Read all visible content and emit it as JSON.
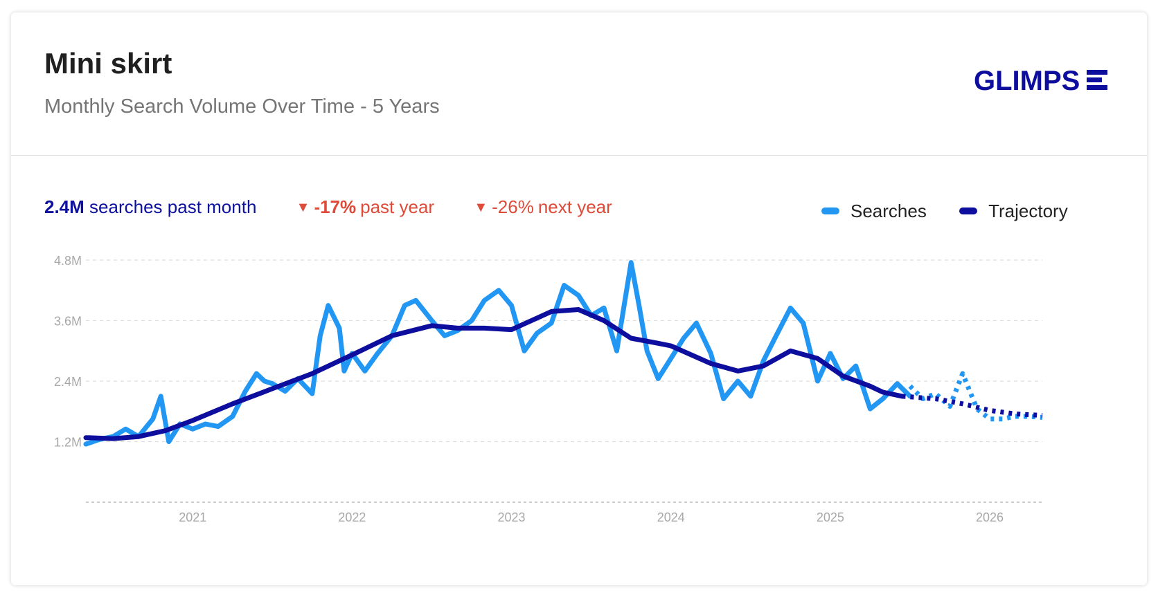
{
  "header": {
    "title": "Mini skirt",
    "subtitle": "Monthly Search Volume Over Time - 5 Years",
    "logo_text": "GLIMPSE"
  },
  "stats": {
    "past_month": {
      "value": "2.4M",
      "label": "searches past month"
    },
    "past_year": {
      "icon": "down-triangle-icon",
      "value": "-17%",
      "label": "past year"
    },
    "next_year": {
      "icon": "down-triangle-icon",
      "value": "-26%",
      "label": "next year"
    }
  },
  "legend": [
    {
      "label": "Searches",
      "color": "#2196f3"
    },
    {
      "label": "Trajectory",
      "color": "#0d0d9e"
    }
  ],
  "colors": {
    "searches": "#2196f3",
    "trajectory": "#0d0d9e",
    "decline": "#dd4b39"
  },
  "chart_data": {
    "type": "line",
    "xlabel": "",
    "ylabel": "",
    "x_ticks": [
      "2021",
      "2022",
      "2023",
      "2024",
      "2025",
      "2026"
    ],
    "y_ticks": [
      {
        "value": 1.2,
        "label": "1.2M"
      },
      {
        "value": 2.4,
        "label": "2.4M"
      },
      {
        "value": 3.6,
        "label": "3.6M"
      },
      {
        "value": 4.8,
        "label": "4.8M"
      }
    ],
    "x_range": [
      2020.33,
      2026.33
    ],
    "y_range": [
      0,
      4.8
    ],
    "grid": true,
    "legend_position": "top-right",
    "series": [
      {
        "name": "Searches",
        "style": "solid",
        "points": [
          [
            2020.33,
            1.15
          ],
          [
            2020.42,
            1.25
          ],
          [
            2020.5,
            1.3
          ],
          [
            2020.58,
            1.45
          ],
          [
            2020.66,
            1.3
          ],
          [
            2020.75,
            1.65
          ],
          [
            2020.8,
            2.1
          ],
          [
            2020.85,
            1.2
          ],
          [
            2020.92,
            1.55
          ],
          [
            2021.0,
            1.45
          ],
          [
            2021.08,
            1.55
          ],
          [
            2021.16,
            1.5
          ],
          [
            2021.25,
            1.7
          ],
          [
            2021.33,
            2.2
          ],
          [
            2021.4,
            2.55
          ],
          [
            2021.45,
            2.4
          ],
          [
            2021.5,
            2.35
          ],
          [
            2021.58,
            2.2
          ],
          [
            2021.66,
            2.45
          ],
          [
            2021.75,
            2.15
          ],
          [
            2021.8,
            3.3
          ],
          [
            2021.85,
            3.9
          ],
          [
            2021.92,
            3.45
          ],
          [
            2021.95,
            2.6
          ],
          [
            2022.0,
            2.95
          ],
          [
            2022.08,
            2.6
          ],
          [
            2022.16,
            2.95
          ],
          [
            2022.25,
            3.3
          ],
          [
            2022.33,
            3.9
          ],
          [
            2022.4,
            4.0
          ],
          [
            2022.5,
            3.6
          ],
          [
            2022.58,
            3.3
          ],
          [
            2022.66,
            3.4
          ],
          [
            2022.75,
            3.6
          ],
          [
            2022.83,
            4.0
          ],
          [
            2022.92,
            4.2
          ],
          [
            2023.0,
            3.9
          ],
          [
            2023.08,
            3.0
          ],
          [
            2023.16,
            3.35
          ],
          [
            2023.25,
            3.55
          ],
          [
            2023.33,
            4.3
          ],
          [
            2023.42,
            4.1
          ],
          [
            2023.5,
            3.7
          ],
          [
            2023.58,
            3.85
          ],
          [
            2023.66,
            3.0
          ],
          [
            2023.75,
            4.75
          ],
          [
            2023.8,
            3.9
          ],
          [
            2023.85,
            3.0
          ],
          [
            2023.92,
            2.45
          ],
          [
            2024.0,
            2.85
          ],
          [
            2024.08,
            3.25
          ],
          [
            2024.16,
            3.55
          ],
          [
            2024.25,
            2.95
          ],
          [
            2024.33,
            2.05
          ],
          [
            2024.42,
            2.4
          ],
          [
            2024.5,
            2.1
          ],
          [
            2024.58,
            2.8
          ],
          [
            2024.66,
            3.3
          ],
          [
            2024.75,
            3.85
          ],
          [
            2024.83,
            3.55
          ],
          [
            2024.92,
            2.4
          ],
          [
            2025.0,
            2.95
          ],
          [
            2025.08,
            2.45
          ],
          [
            2025.16,
            2.7
          ],
          [
            2025.25,
            1.85
          ],
          [
            2025.33,
            2.05
          ],
          [
            2025.42,
            2.35
          ],
          [
            2025.5,
            2.1
          ]
        ]
      },
      {
        "name": "Searches forecast",
        "style": "dotted",
        "points": [
          [
            2025.5,
            2.3
          ],
          [
            2025.58,
            2.05
          ],
          [
            2025.66,
            2.15
          ],
          [
            2025.75,
            1.9
          ],
          [
            2025.83,
            2.55
          ],
          [
            2025.92,
            1.85
          ],
          [
            2026.0,
            1.65
          ],
          [
            2026.08,
            1.65
          ],
          [
            2026.16,
            1.7
          ],
          [
            2026.25,
            1.7
          ],
          [
            2026.33,
            1.68
          ]
        ]
      },
      {
        "name": "Trajectory",
        "style": "solid",
        "points": [
          [
            2020.33,
            1.28
          ],
          [
            2020.5,
            1.26
          ],
          [
            2020.66,
            1.3
          ],
          [
            2020.83,
            1.42
          ],
          [
            2021.0,
            1.62
          ],
          [
            2021.25,
            1.95
          ],
          [
            2021.5,
            2.25
          ],
          [
            2021.75,
            2.55
          ],
          [
            2022.0,
            2.92
          ],
          [
            2022.25,
            3.3
          ],
          [
            2022.5,
            3.5
          ],
          [
            2022.66,
            3.45
          ],
          [
            2022.83,
            3.45
          ],
          [
            2023.0,
            3.42
          ],
          [
            2023.25,
            3.78
          ],
          [
            2023.42,
            3.82
          ],
          [
            2023.58,
            3.6
          ],
          [
            2023.75,
            3.25
          ],
          [
            2023.92,
            3.15
          ],
          [
            2024.0,
            3.1
          ],
          [
            2024.25,
            2.75
          ],
          [
            2024.42,
            2.6
          ],
          [
            2024.58,
            2.7
          ],
          [
            2024.75,
            3.0
          ],
          [
            2024.92,
            2.85
          ],
          [
            2025.08,
            2.5
          ],
          [
            2025.25,
            2.3
          ],
          [
            2025.33,
            2.18
          ],
          [
            2025.45,
            2.1
          ]
        ]
      },
      {
        "name": "Trajectory forecast",
        "style": "dotted",
        "points": [
          [
            2025.45,
            2.1
          ],
          [
            2025.66,
            2.05
          ],
          [
            2025.83,
            1.95
          ],
          [
            2026.0,
            1.82
          ],
          [
            2026.16,
            1.75
          ],
          [
            2026.33,
            1.72
          ]
        ]
      }
    ]
  }
}
